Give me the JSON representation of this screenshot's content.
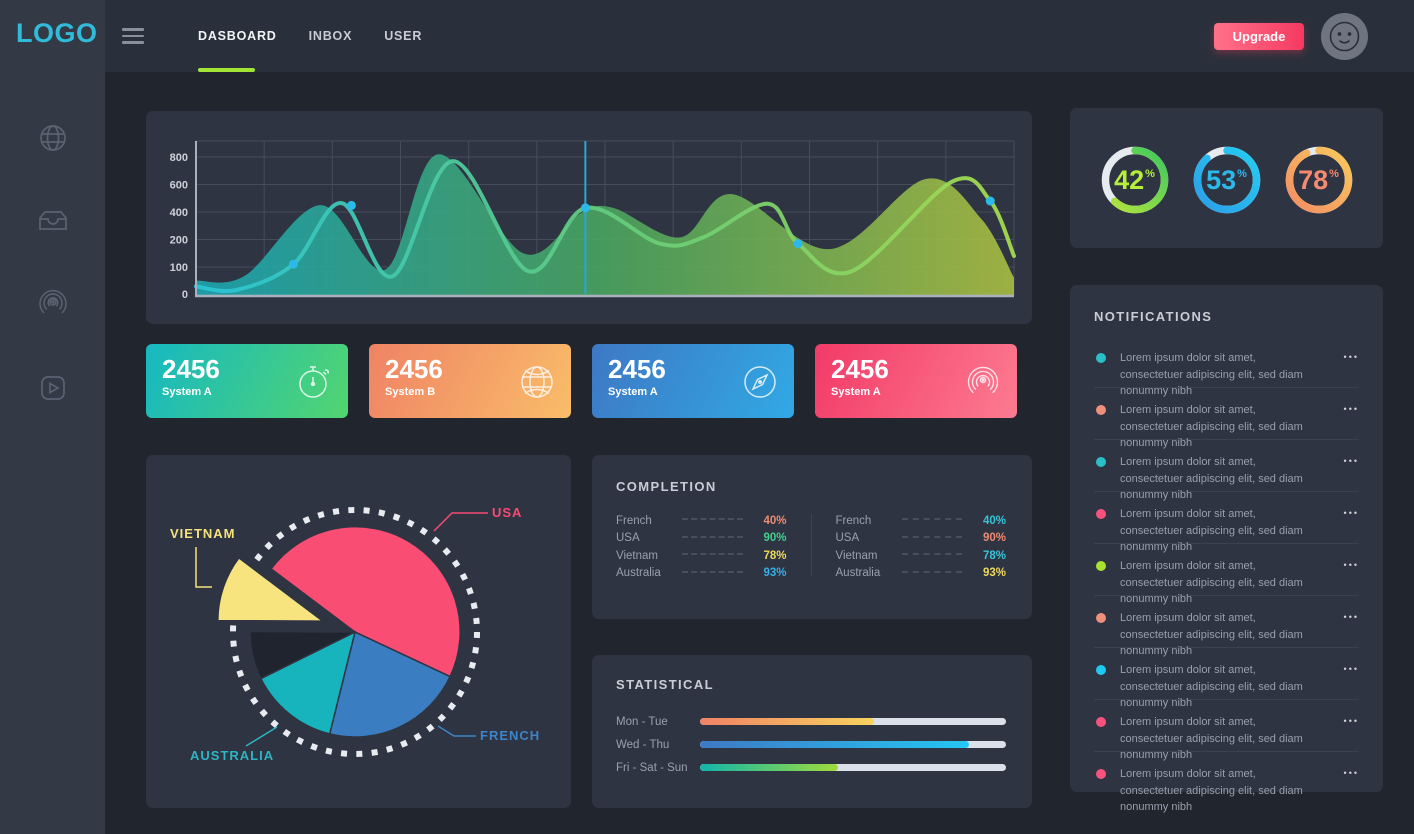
{
  "sidebar": {
    "logo": "LOGO",
    "icons": [
      {
        "name": "globe-icon"
      },
      {
        "name": "inbox-icon"
      },
      {
        "name": "airplay-icon"
      },
      {
        "name": "video-icon"
      }
    ]
  },
  "topbar": {
    "tabs": [
      {
        "label": "DASBOARD",
        "active": true
      },
      {
        "label": "INBOX",
        "active": false
      },
      {
        "label": "USER",
        "active": false
      }
    ],
    "upgrade_label": "Upgrade",
    "accent_underline": "#a2e535",
    "upgrade_gradient": [
      "#ff7189",
      "#f53a61"
    ]
  },
  "stat_cards": [
    {
      "value": "2456",
      "label": "System A",
      "icon": "stopwatch-icon",
      "gradient": [
        "#16b8c2",
        "#53d56f"
      ]
    },
    {
      "value": "2456",
      "label": "System B",
      "icon": "globe-icon",
      "gradient": [
        "#ef8365",
        "#f9bd69"
      ]
    },
    {
      "value": "2456",
      "label": "System A",
      "icon": "compass-icon",
      "gradient": [
        "#3e78c4",
        "#31a9e4"
      ]
    },
    {
      "value": "2456",
      "label": "System A",
      "icon": "airplay-icon",
      "gradient": [
        "#f23a68",
        "#fd7b90"
      ]
    }
  ],
  "panels": {
    "completion_title": "COMPLETION",
    "statistical_title": "STATISTICAL",
    "notifications_title": "NOTIFICATIONS"
  },
  "notifications": {
    "item_text": "Lorem ipsum dolor sit amet, consectetuer adipiscing elit, sed diam nonummy nibh",
    "menu_glyph": "•••",
    "items": [
      {
        "dot_color": "#2abfc9"
      },
      {
        "dot_color": "#f0907a"
      },
      {
        "dot_color": "#2abfc9"
      },
      {
        "dot_color": "#f8537e"
      },
      {
        "dot_color": "#a6e22e"
      },
      {
        "dot_color": "#f0907a"
      },
      {
        "dot_color": "#1ec9f2"
      },
      {
        "dot_color": "#f8537e"
      },
      {
        "dot_color": "#f8537e"
      }
    ]
  },
  "chart_data": [
    {
      "type": "area",
      "title": "traffic-waves",
      "yticks": [
        0,
        100,
        200,
        400,
        600,
        800
      ],
      "ylim": [
        0,
        830
      ],
      "grid": true,
      "series": [
        {
          "name": "area",
          "points": [
            [
              0,
              50
            ],
            [
              6,
              68
            ],
            [
              15.2,
              450
            ],
            [
              23.1,
              90
            ],
            [
              29.6,
              820
            ],
            [
              40,
              150
            ],
            [
              47,
              390
            ],
            [
              51,
              430
            ],
            [
              59.2,
              215
            ],
            [
              65.5,
              530
            ],
            [
              77.5,
              165
            ],
            [
              89.2,
              640
            ],
            [
              96,
              350
            ],
            [
              100,
              60
            ]
          ]
        },
        {
          "name": "line",
          "points": [
            [
              0,
              28
            ],
            [
              5,
              15
            ],
            [
              11.9,
              110
            ],
            [
              17.8,
              465
            ],
            [
              24,
              65
            ],
            [
              31.4,
              770
            ],
            [
              40.6,
              85
            ],
            [
              47.6,
              430
            ],
            [
              56.7,
              185
            ],
            [
              62,
              215
            ],
            [
              69.9,
              460
            ],
            [
              73.6,
              185
            ],
            [
              80.2,
              85
            ],
            [
              92.4,
              620
            ],
            [
              97.1,
              480
            ],
            [
              100,
              140
            ]
          ]
        }
      ],
      "markers": [
        [
          11.9,
          110
        ],
        [
          19,
          448
        ],
        [
          47.6,
          430
        ],
        [
          73.6,
          185
        ],
        [
          97.1,
          480
        ]
      ],
      "marker_line_x": 47.6,
      "area_gradient": [
        "#1ca6b2",
        "#4aa45f",
        "#a9bd42"
      ],
      "line_gradient": [
        "#29c4d6",
        "#63cb7d",
        "#a4da4e"
      ],
      "dot_color": "#2cb9e9",
      "marker_line_color": "#2ba6d6"
    },
    {
      "type": "pie",
      "title": "countries",
      "start_angle": -143,
      "slices": [
        {
          "label": "USA",
          "value": 46.7,
          "color": "#f94d74",
          "label_color": "#f84a72"
        },
        {
          "label": "FRENCH",
          "value": 21.9,
          "color": "#3a7dc0",
          "label_color": "#3d85c8"
        },
        {
          "label": "AUSTRALIA",
          "value": 13.8,
          "color": "#17b4be",
          "label_color": "#2cb5c4"
        },
        {
          "label": "",
          "value": 7.4,
          "color": "#20242e",
          "label_color": "#20242e"
        },
        {
          "label": "VIETNAM",
          "value": 10.2,
          "color": "#f8e47f",
          "label_color": "#f6e27c",
          "exploded": true
        }
      ],
      "dotted_ring_color": "#e9ebf0"
    },
    {
      "type": "table",
      "title": "COMPLETION",
      "groups": [
        {
          "rows": [
            {
              "label": "French",
              "value": "40%",
              "color": "#ef8b72"
            },
            {
              "label": "USA",
              "value": "90%",
              "color": "#41d08e"
            },
            {
              "label": "Vietnam",
              "value": "78%",
              "color": "#efd95c"
            },
            {
              "label": "Australia",
              "value": "93%",
              "color": "#38aee8"
            }
          ]
        },
        {
          "rows": [
            {
              "label": "French",
              "value": "40%",
              "color": "#38c4d8"
            },
            {
              "label": "USA",
              "value": "90%",
              "color": "#ef8b72"
            },
            {
              "label": "Vietnam",
              "value": "78%",
              "color": "#38c4d8"
            },
            {
              "label": "Australia",
              "value": "93%",
              "color": "#efd95c"
            }
          ]
        }
      ]
    },
    {
      "type": "bar",
      "title": "STATISTICAL",
      "categories": [
        "Mon - Tue",
        "Wed - Thu",
        "Fri - Sat - Sun"
      ],
      "values": [
        57,
        88,
        45
      ],
      "unit": "%",
      "bar_gradients": [
        [
          "#f08266",
          "#f8d35e"
        ],
        [
          "#3e79c6",
          "#25c6f2"
        ],
        [
          "#12b5ab",
          "#9fdc3c"
        ]
      ],
      "track_color": "#dce0e8"
    },
    {
      "type": "pie",
      "title": "progress-rings",
      "rings": [
        {
          "value": 42,
          "value_label": "42",
          "visual_pct": 62,
          "number_color": "#b5ef3a",
          "arc_colors": [
            "#b8e63c",
            "#3fc85e"
          ]
        },
        {
          "value": 53,
          "value_label": "53",
          "visual_pct": 88,
          "number_color": "#2bb9ea",
          "arc_colors": [
            "#2b9fe8",
            "#26ccf2"
          ]
        },
        {
          "value": 78,
          "value_label": "78",
          "visual_pct": 93,
          "number_color": "#f58a70",
          "arc_colors": [
            "#f58d64",
            "#f8c95c"
          ]
        }
      ],
      "pct_glyph": "%",
      "track_color": "#e7eaef"
    }
  ]
}
